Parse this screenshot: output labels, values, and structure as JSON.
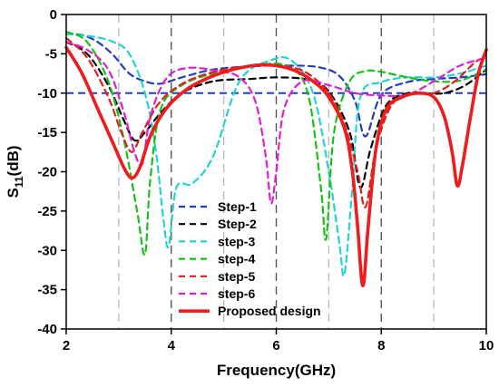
{
  "chart_data": {
    "type": "line",
    "xlabel": "Frequency(GHz)",
    "ylabel": "S11(dB)",
    "ylabel_main": "S",
    "ylabel_sub": "11",
    "ylabel_unit": "(dB)",
    "xlim": [
      2,
      10
    ],
    "ylim": [
      -40,
      0
    ],
    "xticks": [
      2,
      4,
      6,
      8,
      10
    ],
    "yticks": [
      0,
      -5,
      -10,
      -15,
      -20,
      -25,
      -30,
      -35,
      -40
    ],
    "minor_gridlines_x": [
      3,
      5,
      7,
      9
    ],
    "major_gridlines_x": [
      4,
      6,
      8
    ],
    "reference_line_y": -10,
    "legend_position": "center-left",
    "series": [
      {
        "name": "Step-1",
        "color": "#1f3fbf",
        "dash": "dashed",
        "x": [
          2.0,
          2.3,
          2.6,
          2.9,
          3.2,
          3.5,
          3.8,
          4.2,
          4.8,
          5.5,
          6.2,
          6.8,
          7.2,
          7.5,
          7.7,
          8.0,
          8.5,
          9.0,
          9.5,
          10.0
        ],
        "y": [
          -2.5,
          -2.6,
          -3.5,
          -5.2,
          -7.5,
          -8.5,
          -8.8,
          -8.0,
          -7.0,
          -6.6,
          -6.5,
          -6.7,
          -7.8,
          -11.0,
          -15.5,
          -10.2,
          -8.6,
          -8.2,
          -8.0,
          -7.6
        ]
      },
      {
        "name": "Step-2",
        "color": "#000000",
        "dash": "dashed",
        "x": [
          2.0,
          2.4,
          2.8,
          3.1,
          3.3,
          3.5,
          3.8,
          4.2,
          4.8,
          5.5,
          6.0,
          6.6,
          7.0,
          7.4,
          7.6,
          7.8,
          8.1,
          8.5,
          8.8,
          9.2,
          9.6,
          10.0
        ],
        "y": [
          -3.5,
          -5.0,
          -9.0,
          -13.5,
          -16.0,
          -15.0,
          -12.5,
          -10.0,
          -8.5,
          -8.2,
          -8.0,
          -8.3,
          -9.8,
          -15.0,
          -22.0,
          -17.0,
          -11.5,
          -10.0,
          -10.0,
          -10.0,
          -9.0,
          -7.0
        ]
      },
      {
        "name": "step-3",
        "color": "#22d3d3",
        "dash": "dashed",
        "x": [
          2.0,
          2.5,
          2.9,
          3.2,
          3.5,
          3.7,
          3.85,
          3.95,
          4.1,
          4.4,
          4.8,
          5.3,
          5.9,
          6.3,
          6.7,
          7.0,
          7.2,
          7.3,
          7.45,
          7.6,
          8.0,
          8.5,
          9.0,
          9.5,
          10.0
        ],
        "y": [
          -2.5,
          -2.8,
          -3.5,
          -5.0,
          -10.0,
          -17.0,
          -26.0,
          -29.5,
          -22.0,
          -21.5,
          -18.0,
          -8.5,
          -5.8,
          -5.9,
          -10.0,
          -20.0,
          -29.0,
          -33.0,
          -22.0,
          -10.5,
          -8.6,
          -8.0,
          -8.0,
          -7.5,
          -6.5
        ]
      },
      {
        "name": "step-4",
        "color": "#16c216",
        "dash": "dashed",
        "x": [
          2.0,
          2.4,
          2.8,
          3.1,
          3.35,
          3.5,
          3.6,
          3.8,
          4.2,
          4.8,
          5.5,
          6.2,
          6.6,
          6.85,
          6.95,
          7.1,
          7.4,
          7.7,
          8.0,
          8.5,
          9.0,
          9.5,
          10.0
        ],
        "y": [
          -2.2,
          -3.5,
          -8.5,
          -16.0,
          -25.0,
          -30.5,
          -21.0,
          -12.0,
          -9.0,
          -7.5,
          -6.6,
          -6.5,
          -10.0,
          -22.0,
          -28.5,
          -15.0,
          -8.5,
          -7.2,
          -7.3,
          -8.0,
          -8.5,
          -8.4,
          -7.0
        ]
      },
      {
        "name": "step-5",
        "color": "#e02020",
        "dash": "dashed",
        "x": [
          2.0,
          2.4,
          2.8,
          3.05,
          3.25,
          3.45,
          3.8,
          4.3,
          5.0,
          5.7,
          6.2,
          6.6,
          7.0,
          7.3,
          7.55,
          7.7,
          7.9,
          8.2,
          8.6,
          9.0,
          9.4,
          9.8,
          10.0
        ],
        "y": [
          -3.0,
          -5.5,
          -10.5,
          -15.0,
          -17.5,
          -15.0,
          -11.0,
          -8.5,
          -7.0,
          -6.5,
          -6.6,
          -7.5,
          -10.0,
          -14.0,
          -20.0,
          -24.5,
          -17.0,
          -11.5,
          -10.0,
          -10.0,
          -8.5,
          -6.0,
          -5.5
        ]
      },
      {
        "name": "step-6",
        "color": "#e020d0",
        "dash": "dashed",
        "x": [
          2.0,
          2.4,
          2.8,
          3.1,
          3.3,
          3.45,
          3.6,
          3.9,
          4.3,
          4.9,
          5.3,
          5.6,
          5.8,
          5.9,
          6.0,
          6.15,
          6.5,
          7.0,
          7.5,
          8.0,
          8.5,
          9.0,
          9.5,
          10.0
        ],
        "y": [
          -3.5,
          -4.5,
          -7.0,
          -12.5,
          -17.5,
          -19.0,
          -13.0,
          -8.2,
          -6.8,
          -7.2,
          -8.0,
          -11.0,
          -18.0,
          -24.0,
          -20.0,
          -12.0,
          -8.5,
          -9.0,
          -10.0,
          -10.3,
          -10.2,
          -8.5,
          -6.5,
          -5.5
        ]
      },
      {
        "name": "Proposed design",
        "color": "#ee1c1c",
        "dash": "solid",
        "x": [
          2.0,
          2.3,
          2.6,
          2.9,
          3.1,
          3.25,
          3.4,
          3.6,
          3.9,
          4.3,
          4.8,
          5.3,
          5.8,
          6.3,
          6.7,
          7.0,
          7.3,
          7.45,
          7.55,
          7.65,
          7.75,
          7.9,
          8.1,
          8.4,
          8.7,
          9.0,
          9.2,
          9.35,
          9.45,
          9.55,
          9.7,
          9.85,
          10.0
        ],
        "y": [
          -4.2,
          -7.5,
          -12.0,
          -16.5,
          -19.5,
          -20.8,
          -19.5,
          -15.5,
          -12.0,
          -9.5,
          -7.8,
          -6.8,
          -6.4,
          -7.0,
          -8.5,
          -10.5,
          -14.5,
          -20.0,
          -27.0,
          -34.5,
          -27.0,
          -17.0,
          -12.0,
          -10.5,
          -10.0,
          -10.5,
          -13.0,
          -17.5,
          -21.8,
          -19.0,
          -13.0,
          -7.5,
          -4.5
        ]
      }
    ]
  }
}
